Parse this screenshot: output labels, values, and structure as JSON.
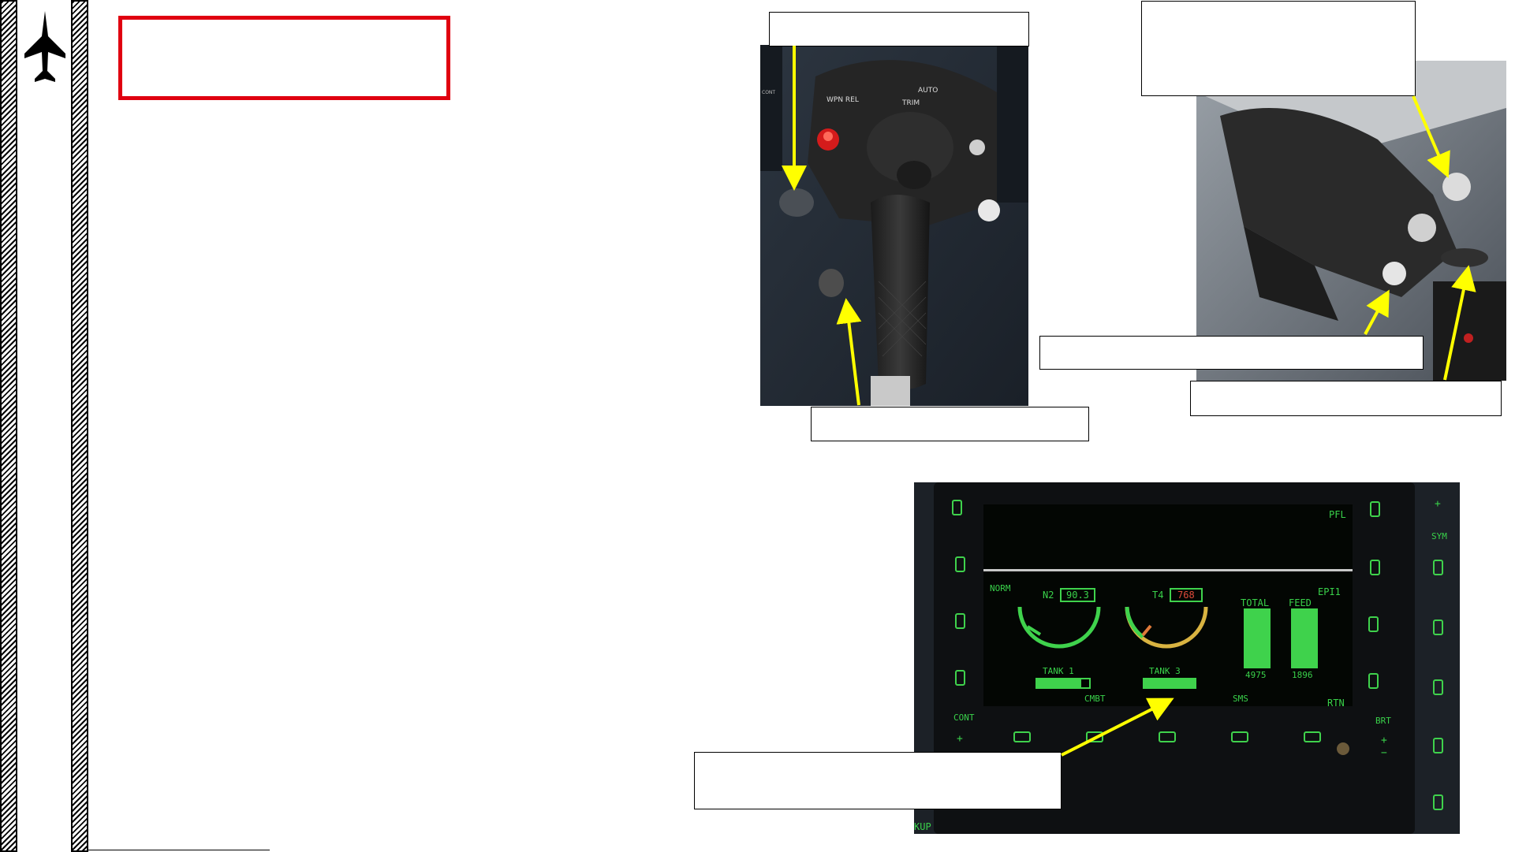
{
  "sidebar": {
    "icon": "jet-silhouette-icon"
  },
  "title_box": {
    "text": ""
  },
  "callouts": {
    "stick_top": "",
    "throttle_top": "",
    "stick_bottom": "",
    "throttle_mid": "",
    "throttle_bottom": "",
    "mfd_left": ""
  },
  "stick": {
    "wpn_rel": "WPN REL",
    "trim": "TRIM",
    "auto": "AUTO",
    "cont": "CONT"
  },
  "mfd": {
    "osb_top_right": "PFL",
    "osb_right_2": "EPI1",
    "osb_right_4": "RTN",
    "osb_bottom_1": "CMBT",
    "osb_bottom_3": "SMS",
    "cont": "CONT",
    "brt": "BRT",
    "sym": "SYM",
    "kup": "KUP",
    "plus": "+",
    "minus": "−",
    "norm": "NORM",
    "n2_label": "N2",
    "n2_value": "90.3",
    "t4_label": "T4",
    "t4_value": "768",
    "total_label": "TOTAL",
    "total_value": "4975",
    "feed_label": "FEED",
    "feed_value": "1896",
    "tank1": "TANK 1",
    "tank3": "TANK 3",
    "colors": {
      "green": "#3fd24c",
      "amber": "#d9b341",
      "red": "#e04a3a"
    }
  }
}
